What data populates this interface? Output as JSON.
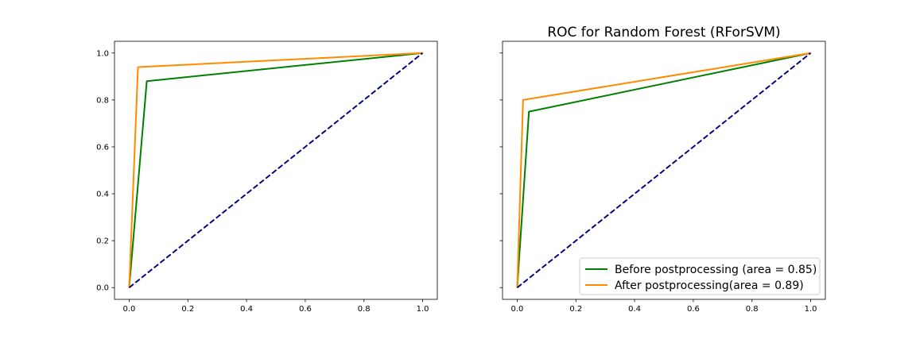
{
  "chart_data": [
    {
      "type": "line",
      "title": "",
      "xlabel": "",
      "ylabel": "",
      "xlim": [
        -0.05,
        1.05
      ],
      "ylim": [
        -0.05,
        1.05
      ],
      "xticks": [
        0.0,
        0.2,
        0.4,
        0.6,
        0.8,
        1.0
      ],
      "yticks": [
        0.0,
        0.2,
        0.4,
        0.6,
        0.8,
        1.0
      ],
      "x_tick_labels": [
        "0.0",
        "0.2",
        "0.4",
        "0.6",
        "0.8",
        "1.0"
      ],
      "y_tick_labels": [
        "0.0",
        "0.2",
        "0.4",
        "0.6",
        "0.8",
        "1.0"
      ],
      "y_tick_labels_visible": true,
      "grid": false,
      "legend": null,
      "series": [
        {
          "color": "#008000",
          "dashed": false,
          "x": [
            0.0,
            0.06,
            1.0
          ],
          "y": [
            0.0,
            0.88,
            1.0
          ]
        },
        {
          "color": "#ff8c00",
          "dashed": false,
          "x": [
            0.0,
            0.03,
            1.0
          ],
          "y": [
            0.0,
            0.94,
            1.0
          ]
        },
        {
          "color": "#000080",
          "dashed": true,
          "x": [
            0.0,
            1.0
          ],
          "y": [
            0.0,
            1.0
          ]
        }
      ]
    },
    {
      "type": "line",
      "title": "ROC for Random Forest (RForSVM)",
      "xlabel": "",
      "ylabel": "",
      "xlim": [
        -0.05,
        1.05
      ],
      "ylim": [
        -0.05,
        1.05
      ],
      "xticks": [
        0.0,
        0.2,
        0.4,
        0.6,
        0.8,
        1.0
      ],
      "yticks": [
        0.0,
        0.2,
        0.4,
        0.6,
        0.8,
        1.0
      ],
      "x_tick_labels": [
        "0.0",
        "0.2",
        "0.4",
        "0.6",
        "0.8",
        "1.0"
      ],
      "y_tick_labels": [],
      "y_tick_labels_visible": false,
      "grid": false,
      "legend": "lower-right",
      "series": [
        {
          "name": "Before postprocessing (area = 0.85)",
          "color": "#008000",
          "dashed": false,
          "x": [
            0.0,
            0.04,
            1.0
          ],
          "y": [
            0.0,
            0.75,
            1.0
          ]
        },
        {
          "name": "After postprocessing(area = 0.89)",
          "color": "#ff8c00",
          "dashed": false,
          "x": [
            0.0,
            0.02,
            1.0
          ],
          "y": [
            0.0,
            0.8,
            1.0
          ]
        },
        {
          "color": "#000080",
          "dashed": true,
          "x": [
            0.0,
            1.0
          ],
          "y": [
            0.0,
            1.0
          ]
        }
      ]
    }
  ]
}
